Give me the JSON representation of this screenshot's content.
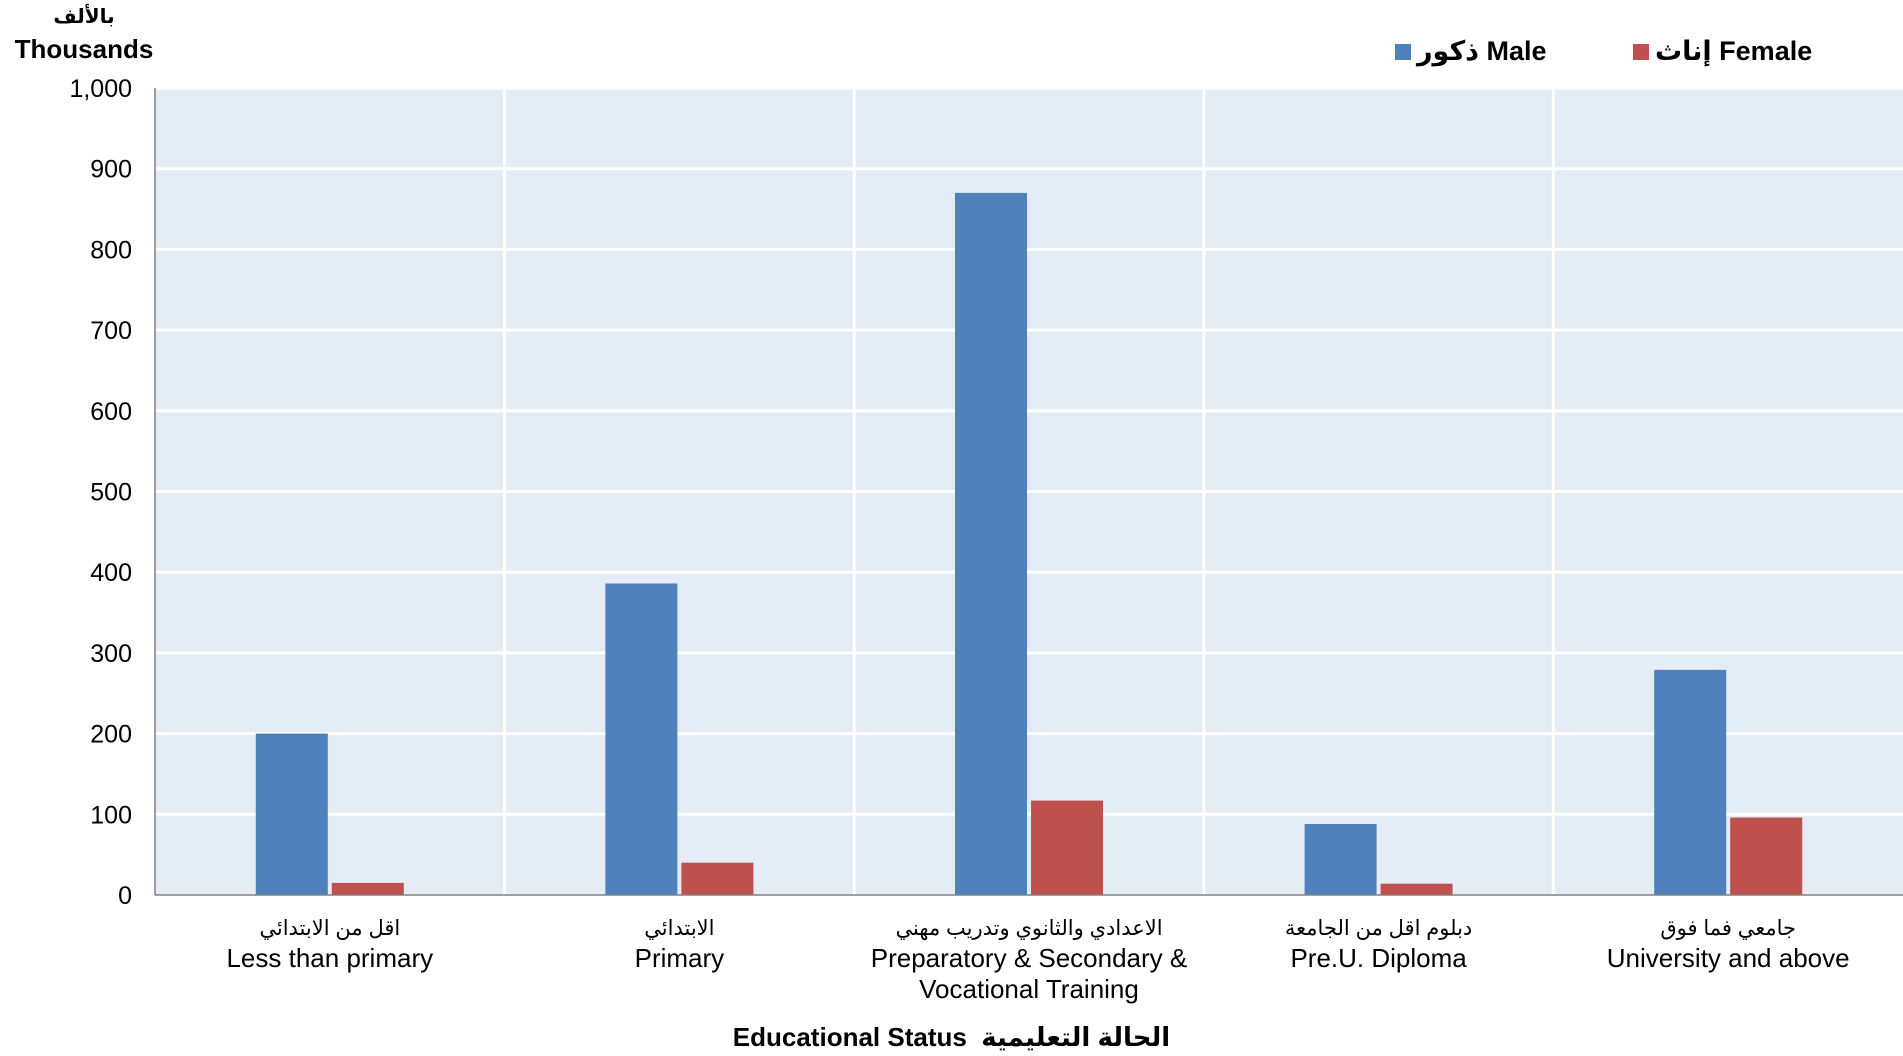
{
  "chart_data": {
    "type": "bar",
    "ylabel_arabic": "بالألف",
    "ylabel": "Thousands",
    "xlabel": "Educational Status  الحالة التعليمية",
    "ylim": [
      0,
      1000
    ],
    "yticks": [
      "0",
      "100",
      "200",
      "300",
      "400",
      "500",
      "600",
      "700",
      "800",
      "900",
      "1,000"
    ],
    "ytick_values": [
      0,
      100,
      200,
      300,
      400,
      500,
      600,
      700,
      800,
      900,
      1000
    ],
    "grid": true,
    "legend_position": "top-right",
    "categories": [
      {
        "arabic": "اقل من الابتدائي",
        "english": [
          "Less than primary"
        ]
      },
      {
        "arabic": "الابتدائي",
        "english": [
          "Primary"
        ]
      },
      {
        "arabic": "الاعدادي والثانوي وتدريب مهني",
        "english": [
          "Preparatory & Secondary &",
          "Vocational Training"
        ]
      },
      {
        "arabic": "دبلوم اقل من الجامعة",
        "english": [
          "Pre.U. Diploma"
        ]
      },
      {
        "arabic": "جامعي فما فوق",
        "english": [
          "University and above"
        ]
      }
    ],
    "series": [
      {
        "name": "ذكور Male",
        "color": "#4F81BD",
        "values": [
          200,
          386,
          870,
          88,
          279
        ]
      },
      {
        "name": "إناث Female",
        "color": "#C0504D",
        "values": [
          15,
          40,
          117,
          14,
          96
        ]
      }
    ]
  }
}
